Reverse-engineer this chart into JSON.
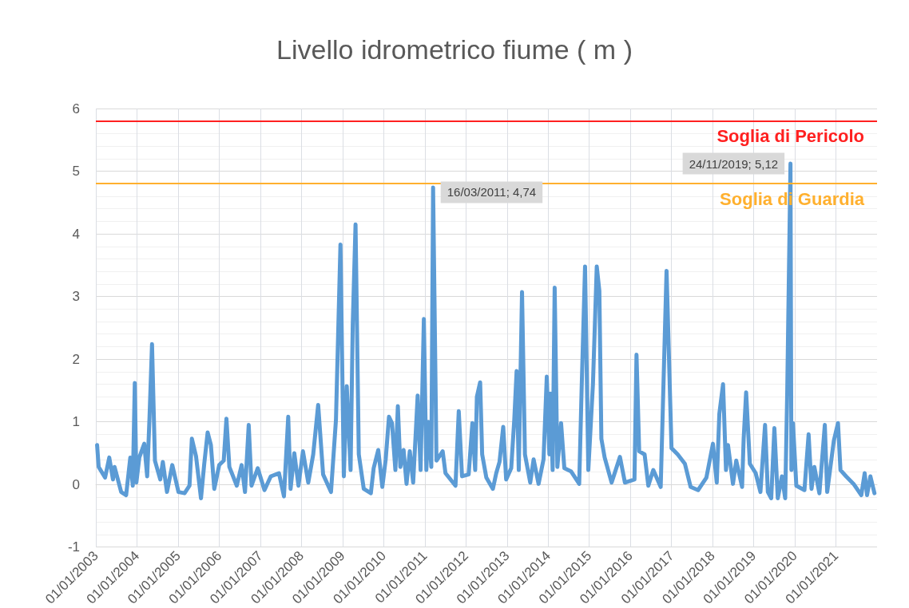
{
  "chart_data": {
    "type": "line",
    "title": "Livello idrometrico fiume ( m )",
    "x": [
      "2003-01-12",
      "2003-01-26",
      "2003-03-24",
      "2003-04-30",
      "2003-06-02",
      "2003-06-16",
      "2003-08-14",
      "2003-09-27",
      "2003-11-03",
      "2003-11-25",
      "2003-12-13",
      "2003-12-27",
      "2004-01-22",
      "2004-03-06",
      "2004-04-01",
      "2004-04-22",
      "2004-05-14",
      "2004-06-09",
      "2004-07-26",
      "2004-08-18",
      "2004-09-24",
      "2004-11-10",
      "2005-01-04",
      "2005-02-27",
      "2005-04-12",
      "2005-05-03",
      "2005-06-09",
      "2005-07-23",
      "2005-08-21",
      "2005-09-20",
      "2005-10-19",
      "2005-11-18",
      "2006-01-01",
      "2006-02-10",
      "2006-03-06",
      "2006-04-01",
      "2006-06-06",
      "2006-07-19",
      "2006-08-18",
      "2006-09-20",
      "2006-10-15",
      "2006-12-09",
      "2007-02-07",
      "2007-04-04",
      "2007-06-16",
      "2007-07-30",
      "2007-09-06",
      "2007-09-27",
      "2007-10-30",
      "2007-12-06",
      "2008-01-15",
      "2008-03-02",
      "2008-04-15",
      "2008-05-29",
      "2008-07-12",
      "2008-09-20",
      "2008-11-03",
      "2008-12-13",
      "2009-01-12",
      "2009-02-07",
      "2009-03-13",
      "2009-04-01",
      "2009-04-26",
      "2009-05-25",
      "2009-07-08",
      "2009-09-09",
      "2009-10-04",
      "2009-11-14",
      "2009-12-20",
      "2010-01-19",
      "2010-02-17",
      "2010-03-16",
      "2010-04-15",
      "2010-05-07",
      "2010-05-29",
      "2010-06-27",
      "2010-07-23",
      "2010-08-21",
      "2010-09-20",
      "2010-10-30",
      "2010-11-25",
      "2010-12-24",
      "2011-01-15",
      "2011-02-03",
      "2011-02-28",
      "2011-03-16",
      "2011-04-15",
      "2011-06-09",
      "2011-07-04",
      "2011-10-01",
      "2011-10-30",
      "2011-11-28",
      "2012-01-26",
      "2012-02-28",
      "2012-03-24",
      "2012-04-08",
      "2012-05-07",
      "2012-05-25",
      "2012-07-01",
      "2012-08-28",
      "2012-09-27",
      "2012-10-26",
      "2012-11-28",
      "2012-12-24",
      "2013-02-07",
      "2013-03-06",
      "2013-03-27",
      "2013-04-15",
      "2013-05-14",
      "2013-06-09",
      "2013-07-26",
      "2013-08-25",
      "2013-10-08",
      "2013-11-21",
      "2013-12-20",
      "2014-01-12",
      "2014-01-22",
      "2014-02-10",
      "2014-02-28",
      "2014-03-24",
      "2014-04-26",
      "2014-05-25",
      "2014-07-23",
      "2014-10-04",
      "2014-10-26",
      "2014-11-25",
      "2014-12-24",
      "2015-02-03",
      "2015-03-09",
      "2015-04-01",
      "2015-04-19",
      "2015-05-18",
      "2015-07-19",
      "2015-10-01",
      "2015-11-14",
      "2016-02-07",
      "2016-02-25",
      "2016-03-20",
      "2016-05-07",
      "2016-06-09",
      "2016-07-23",
      "2016-09-27",
      "2016-11-18",
      "2017-01-01",
      "2017-02-25",
      "2017-04-30",
      "2017-06-20",
      "2017-08-25",
      "2017-11-07",
      "2018-01-04",
      "2018-02-07",
      "2018-03-02",
      "2018-04-04",
      "2018-04-30",
      "2018-05-18",
      "2018-07-01",
      "2018-07-30",
      "2018-09-20",
      "2018-10-04",
      "2018-10-26",
      "2018-11-28",
      "2019-01-19",
      "2019-03-02",
      "2019-04-12",
      "2019-05-07",
      "2019-06-06",
      "2019-07-04",
      "2019-08-03",
      "2019-09-09",
      "2019-10-08",
      "2019-10-26",
      "2019-11-24",
      "2019-12-02",
      "2019-12-16",
      "2020-01-15",
      "2020-03-27",
      "2020-05-03",
      "2020-05-29",
      "2020-06-23",
      "2020-08-07",
      "2020-09-24",
      "2020-10-15",
      "2020-12-13",
      "2021-01-19",
      "2021-02-10",
      "2021-04-01",
      "2021-06-06",
      "2021-08-14",
      "2021-09-13",
      "2021-10-04",
      "2021-11-03",
      "2021-12-09"
    ],
    "series": [
      {
        "color": "#5b9bd5",
        "values": [
          0.63,
          0.28,
          0.11,
          0.43,
          0.08,
          0.28,
          -0.12,
          -0.17,
          0.43,
          -0.02,
          1.62,
          0.03,
          0.43,
          0.65,
          0.13,
          1.08,
          2.24,
          0.38,
          0.08,
          0.36,
          -0.12,
          0.31,
          -0.12,
          -0.14,
          -0.02,
          0.73,
          0.45,
          -0.22,
          0.33,
          0.83,
          0.63,
          -0.07,
          0.31,
          0.38,
          1.05,
          0.28,
          -0.02,
          0.31,
          -0.12,
          0.95,
          -0.02,
          0.26,
          -0.09,
          0.13,
          0.18,
          -0.19,
          1.08,
          -0.07,
          0.5,
          -0.02,
          0.53,
          0.03,
          0.48,
          1.27,
          0.16,
          -0.12,
          1.03,
          3.83,
          0.13,
          1.57,
          0.23,
          2.54,
          4.15,
          0.48,
          -0.07,
          -0.14,
          0.26,
          0.55,
          -0.04,
          0.4,
          1.08,
          0.98,
          0.23,
          1.25,
          0.28,
          0.55,
          0.01,
          0.53,
          0.03,
          1.42,
          0.23,
          2.64,
          0.23,
          1.0,
          0.28,
          4.74,
          0.38,
          0.53,
          0.18,
          -0.02,
          1.17,
          0.13,
          0.16,
          0.98,
          0.23,
          1.4,
          1.63,
          0.48,
          0.11,
          -0.07,
          0.18,
          0.36,
          0.92,
          0.08,
          0.26,
          1.03,
          1.81,
          0.23,
          3.07,
          0.48,
          0.03,
          0.4,
          0.01,
          0.4,
          1.72,
          0.48,
          1.45,
          0.23,
          3.14,
          0.28,
          0.98,
          0.26,
          0.21,
          0.01,
          1.55,
          3.48,
          0.23,
          1.6,
          3.48,
          3.09,
          0.73,
          0.43,
          0.03,
          0.44,
          0.03,
          0.08,
          2.07,
          0.53,
          0.48,
          -0.02,
          0.23,
          -0.04,
          3.41,
          0.58,
          0.48,
          0.33,
          -0.04,
          -0.09,
          0.11,
          0.65,
          0.03,
          1.13,
          1.6,
          0.23,
          0.63,
          0.01,
          0.38,
          -0.04,
          0.73,
          1.47,
          0.33,
          0.18,
          -0.12,
          0.95,
          -0.12,
          -0.22,
          0.9,
          -0.22,
          0.13,
          -0.22,
          1.47,
          5.12,
          0.23,
          0.98,
          -0.02,
          -0.09,
          0.8,
          -0.07,
          0.28,
          -0.14,
          0.95,
          -0.12,
          0.7,
          0.98,
          0.23,
          0.13,
          0.01,
          -0.17,
          0.18,
          -0.17,
          0.13,
          -0.14
        ]
      }
    ],
    "xlim": [
      "2003-01-01",
      "2022-01-01"
    ],
    "xticks": [
      {
        "value": "2003-01-01",
        "label": "01/01/2003"
      },
      {
        "value": "2004-01-01",
        "label": "01/01/2004"
      },
      {
        "value": "2005-01-01",
        "label": "01/01/2005"
      },
      {
        "value": "2006-01-01",
        "label": "01/01/2006"
      },
      {
        "value": "2007-01-01",
        "label": "01/01/2007"
      },
      {
        "value": "2008-01-01",
        "label": "01/01/2008"
      },
      {
        "value": "2009-01-01",
        "label": "01/01/2009"
      },
      {
        "value": "2010-01-01",
        "label": "01/01/2010"
      },
      {
        "value": "2011-01-01",
        "label": "01/01/2011"
      },
      {
        "value": "2012-01-01",
        "label": "01/01/2012"
      },
      {
        "value": "2013-01-01",
        "label": "01/01/2013"
      },
      {
        "value": "2014-01-01",
        "label": "01/01/2014"
      },
      {
        "value": "2015-01-01",
        "label": "01/01/2015"
      },
      {
        "value": "2016-01-01",
        "label": "01/01/2016"
      },
      {
        "value": "2017-01-01",
        "label": "01/01/2017"
      },
      {
        "value": "2018-01-01",
        "label": "01/01/2018"
      },
      {
        "value": "2019-01-01",
        "label": "01/01/2019"
      },
      {
        "value": "2020-01-01",
        "label": "01/01/2020"
      },
      {
        "value": "2021-01-01",
        "label": "01/01/2021"
      }
    ],
    "ylim": [
      -1,
      6
    ],
    "yticks": [
      -1,
      0,
      1,
      2,
      3,
      4,
      5,
      6
    ],
    "ref_lines": [
      {
        "axis": "y",
        "value": 5.8,
        "label": "Soglia di Pericolo",
        "color": "#ff2020"
      },
      {
        "axis": "y",
        "value": 4.8,
        "label": "Soglia di Guardia",
        "color": "#ffb02e"
      }
    ],
    "annotations": [
      {
        "text": "16/03/2011; 4,74",
        "x": "2011-03-16",
        "y": 4.74
      },
      {
        "text": "24/11/2019; 5,12",
        "x": "2019-11-24",
        "y": 5.12
      }
    ],
    "grid": true,
    "marker": "none",
    "line_style": "solid"
  }
}
